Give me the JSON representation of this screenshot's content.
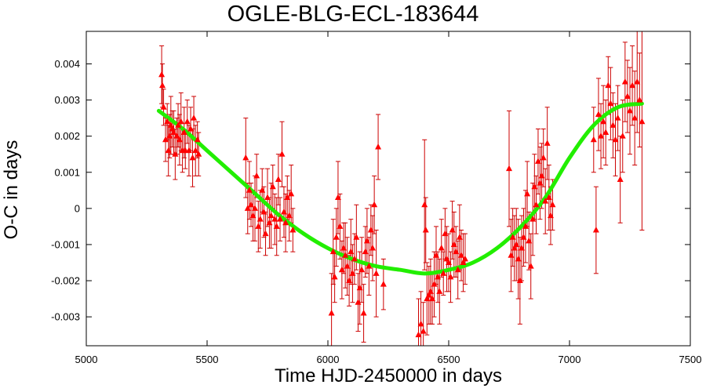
{
  "chart_data": {
    "type": "scatter",
    "title": "OGLE-BLG-ECL-183644",
    "xlabel": "Time HJD-2450000 in days",
    "ylabel": "O-C in days",
    "xlim": [
      5000,
      7500
    ],
    "ylim": [
      -0.0038,
      0.0049
    ],
    "x_ticks": [
      5000,
      5500,
      6000,
      6500,
      7000,
      7500
    ],
    "y_ticks": [
      -0.003,
      -0.002,
      -0.001,
      0,
      0.001,
      0.002,
      0.003,
      0.004
    ],
    "y_tick_labels": [
      "-0.003",
      "-0.002",
      "-0.001",
      "0",
      "0.001",
      "0.002",
      "0.003",
      "0.004"
    ],
    "grid": false,
    "colors": {
      "points": "#ff0000",
      "errorbars": "#cc0000",
      "fit": "#22ee00",
      "axes": "#000000"
    },
    "series": [
      {
        "kind": "points_with_errorbars",
        "x": [
          5312,
          5315,
          5320,
          5328,
          5335,
          5340,
          5345,
          5350,
          5356,
          5362,
          5368,
          5375,
          5380,
          5386,
          5392,
          5398,
          5405,
          5410,
          5418,
          5425,
          5432,
          5440,
          5445,
          5452,
          5460,
          5465,
          5660,
          5668,
          5675,
          5682,
          5690,
          5698,
          5705,
          5712,
          5720,
          5728,
          5735,
          5742,
          5750,
          5758,
          5765,
          5772,
          5780,
          5788,
          5795,
          5802,
          5810,
          5818,
          5825,
          5832,
          5840,
          5848,
          5855,
          6015,
          6022,
          6028,
          6035,
          6042,
          6050,
          6058,
          6065,
          6072,
          6080,
          6088,
          6095,
          6102,
          6110,
          6118,
          6125,
          6132,
          6140,
          6148,
          6155,
          6162,
          6170,
          6178,
          6185,
          6192,
          6200,
          6208,
          6230,
          6375,
          6385,
          6395,
          6400,
          6405,
          6410,
          6418,
          6425,
          6432,
          6440,
          6448,
          6455,
          6462,
          6470,
          6478,
          6485,
          6492,
          6500,
          6508,
          6515,
          6522,
          6530,
          6538,
          6545,
          6552,
          6560,
          6568,
          6750,
          6758,
          6765,
          6772,
          6780,
          6788,
          6795,
          6802,
          6810,
          6818,
          6825,
          6832,
          6840,
          6848,
          6855,
          6862,
          6870,
          6878,
          6885,
          6892,
          6900,
          6908,
          6915,
          6922,
          6930,
          7100,
          7110,
          7120,
          7130,
          7140,
          7150,
          7160,
          7170,
          7180,
          7190,
          7200,
          7210,
          7220,
          7230,
          7240,
          7250,
          7260,
          7270,
          7280,
          7290,
          7300
        ],
        "y": [
          0.0037,
          0.0034,
          0.0028,
          0.0019,
          0.0024,
          0.0016,
          0.002,
          0.0023,
          0.0022,
          0.0021,
          0.0015,
          0.002,
          0.0023,
          0.0019,
          0.0024,
          0.0016,
          0.0021,
          0.0016,
          0.0024,
          0.0016,
          0.0022,
          0.0014,
          0.0025,
          0.0016,
          0.0019,
          0.0015,
          0.0014,
          0.0,
          0.0005,
          0.0001,
          -0.0002,
          0.0,
          0.0009,
          -0.0005,
          -0.0003,
          0.0005,
          -0.0001,
          -0.0007,
          0.0003,
          -0.0004,
          -0.0002,
          0.0006,
          -0.0003,
          -0.0005,
          0.0008,
          -0.0003,
          0.0015,
          -0.0001,
          -0.0004,
          0.0003,
          -0.0002,
          0.0004,
          -0.0006,
          -0.0029,
          -0.0012,
          -0.0019,
          -0.0008,
          0.0003,
          -0.0005,
          -0.0017,
          -0.0011,
          -0.0013,
          -0.0016,
          -0.002,
          -0.0012,
          -0.0018,
          -0.0014,
          -0.0008,
          -0.0026,
          -0.0022,
          -0.0017,
          -0.0029,
          -0.0012,
          -0.0009,
          -0.0016,
          -0.0006,
          -0.0011,
          0.0001,
          -0.0018,
          0.0017,
          -0.0021,
          -0.0035,
          -0.0032,
          -0.0034,
          0.0001,
          -0.0006,
          -0.0025,
          -0.0024,
          -0.0023,
          -0.0025,
          -0.0021,
          -0.0013,
          -0.0019,
          -0.0023,
          -0.0011,
          -0.0018,
          -0.0007,
          -0.0014,
          -0.0015,
          -0.0019,
          -0.0006,
          -0.001,
          -0.0012,
          -0.0017,
          -0.0008,
          -0.0013,
          -0.0015,
          -0.0014,
          0.0011,
          -0.0013,
          -0.0008,
          -0.0011,
          -0.001,
          -0.0014,
          -0.002,
          -0.0011,
          -0.0008,
          -0.0005,
          0.0004,
          -0.0009,
          -0.0016,
          -0.0003,
          0.0006,
          0.0001,
          0.0013,
          0.0007,
          0.0009,
          0.0014,
          0.0002,
          0.0018,
          0.0003,
          -0.0002,
          0.0001,
          0.0019,
          -0.0006,
          0.0026,
          0.002,
          0.0024,
          0.0021,
          0.0034,
          0.0029,
          0.0023,
          0.0019,
          0.0025,
          0.0008,
          0.002,
          0.0035,
          0.0031,
          0.0027,
          0.0034,
          0.0025,
          0.0035,
          0.003,
          0.0024
        ],
        "yerr": [
          0.0008,
          0.0006,
          0.0005,
          0.0006,
          0.0005,
          0.0007,
          0.0006,
          0.0008,
          0.0005,
          0.0006,
          0.0007,
          0.0005,
          0.0006,
          0.0007,
          0.0008,
          0.0006,
          0.0007,
          0.0005,
          0.0006,
          0.0007,
          0.0006,
          0.0008,
          0.0006,
          0.0007,
          0.0005,
          0.0006,
          0.0011,
          0.0007,
          0.0008,
          0.0006,
          0.0007,
          0.0009,
          0.0006,
          0.0007,
          0.0008,
          0.0006,
          0.0007,
          0.0006,
          0.0008,
          0.0007,
          0.0009,
          0.0006,
          0.0007,
          0.0008,
          0.0007,
          0.0006,
          0.0009,
          0.0007,
          0.0008,
          0.0006,
          0.0007,
          0.0008,
          0.0006,
          0.0011,
          0.0009,
          0.0007,
          0.0008,
          0.001,
          0.0009,
          0.0008,
          0.0007,
          0.0009,
          0.0008,
          0.0007,
          0.0009,
          0.0008,
          0.0007,
          0.0009,
          0.0008,
          0.001,
          0.0009,
          0.0008,
          0.0007,
          0.0009,
          0.0008,
          0.0007,
          0.0009,
          0.0008,
          0.0012,
          0.0009,
          0.0007,
          0.001,
          0.0009,
          0.0008,
          0.0018,
          0.0009,
          0.001,
          0.0008,
          0.0009,
          0.0007,
          0.0009,
          0.0008,
          0.0007,
          0.0009,
          0.0008,
          0.0006,
          0.0007,
          0.0009,
          0.0008,
          0.0007,
          0.0008,
          0.0009,
          0.0007,
          0.0008,
          0.0009,
          0.0007,
          0.0008,
          0.0007,
          0.0016,
          0.001,
          0.0008,
          0.0009,
          0.001,
          0.0011,
          0.0012,
          0.0009,
          0.0008,
          0.001,
          0.0009,
          0.0008,
          0.0009,
          0.001,
          0.0009,
          0.0008,
          0.0009,
          0.001,
          0.0009,
          0.0008,
          0.0009,
          0.001,
          0.0009,
          0.0008,
          0.0007,
          0.0009,
          0.0012,
          0.001,
          0.0009,
          0.001,
          0.0009,
          0.0008,
          0.001,
          0.0009,
          0.001,
          0.0009,
          0.0012,
          0.001,
          0.0011,
          0.001,
          0.0012,
          0.0011,
          0.0013,
          0.0014,
          0.0013,
          0.003
        ]
      },
      {
        "kind": "fit_curve",
        "x": [
          5300,
          5400,
          5500,
          5600,
          5700,
          5800,
          5900,
          6000,
          6100,
          6200,
          6300,
          6400,
          6500,
          6600,
          6700,
          6800,
          6900,
          7000,
          7100,
          7200,
          7300
        ],
        "y": [
          0.0027,
          0.0022,
          0.0016,
          0.001,
          0.0004,
          -0.0002,
          -0.0007,
          -0.0011,
          -0.0014,
          -0.0016,
          -0.0017,
          -0.0018,
          -0.0017,
          -0.0015,
          -0.0011,
          -0.0005,
          0.0003,
          0.0014,
          0.0023,
          0.0028,
          0.0029
        ]
      }
    ]
  }
}
